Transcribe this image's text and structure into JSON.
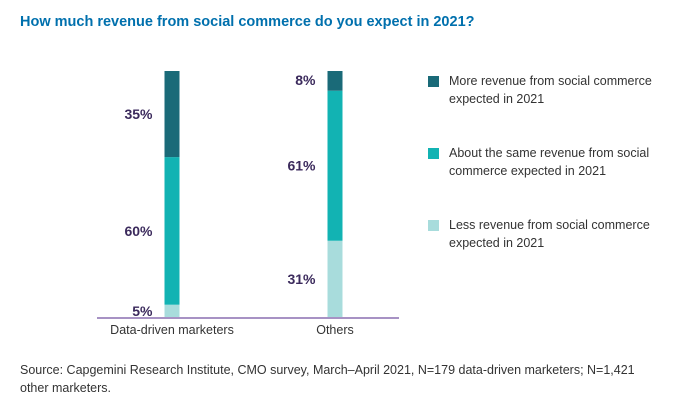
{
  "title": "How much revenue from social commerce do you expect in 2021?",
  "colors": {
    "title": "#0070ad",
    "more": "#1a6a78",
    "same": "#12b3b3",
    "less": "#a8dcdc",
    "label": "#3b2a5c",
    "axis": "#8a6fb0"
  },
  "chart_data": {
    "type": "bar",
    "stacked": true,
    "orientation": "vertical",
    "title": "How much revenue from social commerce do you expect in 2021?",
    "xlabel": "",
    "ylabel": "",
    "ylim": [
      0,
      100
    ],
    "categories": [
      "Data-driven marketers",
      "Others"
    ],
    "series": [
      {
        "name": "Less revenue from social commerce expected in 2021",
        "color_key": "less",
        "values": [
          5,
          31
        ],
        "labels": [
          "5%",
          "31%"
        ]
      },
      {
        "name": "About the same revenue from social commerce expected in 2021",
        "color_key": "same",
        "values": [
          60,
          61
        ],
        "labels": [
          "60%",
          "61%"
        ]
      },
      {
        "name": "More revenue from social commerce expected in 2021",
        "color_key": "more",
        "values": [
          35,
          8
        ],
        "labels": [
          "35%",
          "8%"
        ]
      }
    ],
    "legend_position": "right",
    "grid": false
  },
  "legend": [
    {
      "label": "More revenue from social commerce expected in 2021",
      "color_key": "more"
    },
    {
      "label": "About the same revenue from social commerce expected in 2021",
      "color_key": "same"
    },
    {
      "label": "Less revenue from social commerce expected in 2021",
      "color_key": "less"
    }
  ],
  "source": "Source: Capgemini Research Institute, CMO survey, March–April 2021, N=179 data-driven marketers; N=1,421 other marketers."
}
